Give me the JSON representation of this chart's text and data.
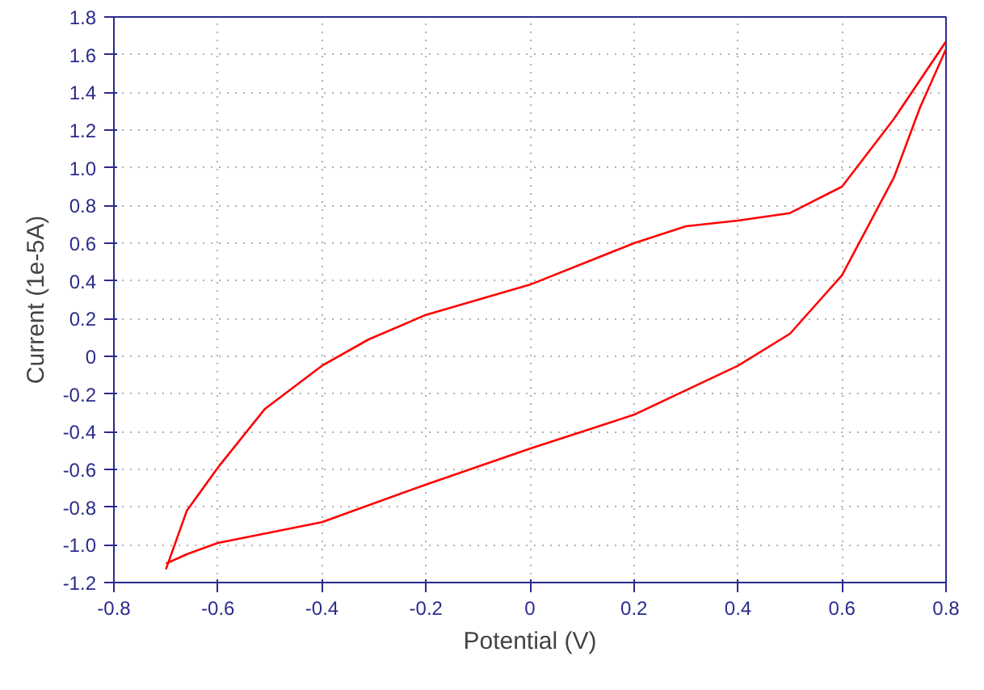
{
  "chart_data": {
    "type": "line",
    "xlabel": "Potential (V)",
    "ylabel": "Current (1e-5A)",
    "xlim": [
      -0.8,
      0.8
    ],
    "xticks": [
      -0.8,
      -0.6,
      -0.4,
      -0.2,
      0,
      0.2,
      0.4,
      0.6,
      0.8
    ],
    "ylim": [
      -1.2,
      1.8
    ],
    "yticks": [
      -1.2,
      {
        "value": -1.0,
        "label": "-1.0"
      },
      -0.8,
      -0.6,
      -0.4,
      -0.2,
      0,
      0.2,
      0.4,
      0.6,
      0.8,
      {
        "value": 1.0,
        "label": "1.0"
      },
      1.2,
      1.4,
      1.6,
      1.8
    ],
    "grid": true,
    "marker": "none",
    "line_style": "solid",
    "series": [
      {
        "color": "#ff0000",
        "x": [
          -0.7,
          -0.66,
          -0.6,
          -0.51,
          -0.4,
          -0.31,
          -0.2,
          0,
          0.2,
          0.3,
          0.4,
          0.5,
          0.6,
          0.7,
          0.8
        ],
        "values": [
          -1.13,
          -0.82,
          -0.59,
          -0.28,
          -0.05,
          0.09,
          0.22,
          0.38,
          0.6,
          0.69,
          0.72,
          0.76,
          0.9,
          1.26,
          1.67
        ]
      },
      {
        "color": "#ff0000",
        "x": [
          0.8,
          0.75,
          0.7,
          0.6,
          0.5,
          0.4,
          0.2,
          0,
          -0.2,
          -0.4,
          -0.6,
          -0.66,
          -0.7
        ],
        "values": [
          1.63,
          1.32,
          0.95,
          0.43,
          0.12,
          -0.05,
          -0.31,
          -0.49,
          -0.68,
          -0.88,
          -0.99,
          -1.05,
          -1.1
        ]
      }
    ]
  }
}
